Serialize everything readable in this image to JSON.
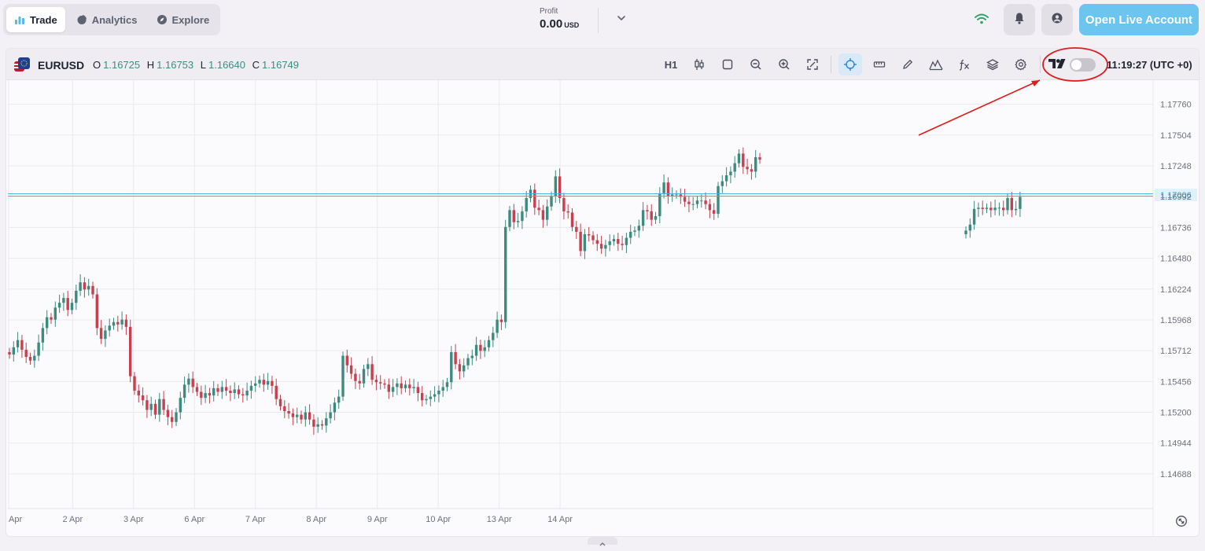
{
  "nav": {
    "tabs": [
      {
        "label": "Trade",
        "icon": "bar-chart-icon",
        "active": true
      },
      {
        "label": "Analytics",
        "icon": "pie-chart-icon",
        "active": false
      },
      {
        "label": "Explore",
        "icon": "compass-icon",
        "active": false
      }
    ]
  },
  "profit": {
    "label": "Profit",
    "value": "0.00",
    "currency": "USD"
  },
  "header": {
    "cta_label": "Open Live Account",
    "icons": [
      "wifi-icon",
      "bell-icon",
      "user-icon"
    ]
  },
  "colors": {
    "accent": "#6cc5ee",
    "bull": "#3d8a7e",
    "bear": "#c7404f",
    "price_line": "#4fb3d9"
  },
  "chart_toolbar": {
    "symbol": "EURUSD",
    "ohlc": {
      "o_label": "O",
      "o": "1.16725",
      "h_label": "H",
      "h": "1.16753",
      "l_label": "L",
      "l": "1.16640",
      "c_label": "C",
      "c": "1.16749"
    },
    "timeframe": "H1",
    "tools": [
      "candles-icon",
      "square-icon",
      "zoom-out-icon",
      "zoom-in-icon",
      "fullscreen-icon",
      "crosshair-icon",
      "ruler-icon",
      "pencil-icon",
      "indicators-icon",
      "fx-icon",
      "layers-icon",
      "settings-icon"
    ],
    "clock": "11:19:27 (UTC +0)",
    "tradingview_toggle": false
  },
  "chart_data": {
    "type": "candlestick",
    "symbol": "EURUSD",
    "timeframe": "H1",
    "y_ticks": [
      "1.17760",
      "1.17504",
      "1.17248",
      "1.16992",
      "1.16736",
      "1.16480",
      "1.16224",
      "1.15968",
      "1.15712",
      "1.15456",
      "1.15200",
      "1.14944",
      "1.14688"
    ],
    "ylim": [
      1.144,
      1.1796
    ],
    "current_price_label": "1.17006",
    "current_price": 1.17006,
    "x_ticks": [
      "Apr",
      "2 Apr",
      "3 Apr",
      "6 Apr",
      "7 Apr",
      "8 Apr",
      "9 Apr",
      "10 Apr",
      "13 Apr",
      "14 Apr"
    ],
    "grid": true,
    "segments": [
      {
        "start": 1.157,
        "points": [
          1.1568,
          1.1574,
          1.158,
          1.1572,
          1.1566,
          1.1563,
          1.1567,
          1.1578,
          1.159,
          1.1599,
          1.1597,
          1.1607,
          1.1611,
          1.1615,
          1.1605,
          1.1611,
          1.1621,
          1.1628,
          1.1622,
          1.1625,
          1.1618,
          1.159,
          1.1581,
          1.1588,
          1.1592,
          1.1595,
          1.1593,
          1.1597,
          1.1591,
          1.155,
          1.1538,
          1.1534,
          1.153,
          1.1522,
          1.1527,
          1.1518,
          1.1531,
          1.1522,
          1.1516,
          1.1512,
          1.152,
          1.1532,
          1.1543,
          1.1548,
          1.1541,
          1.1537,
          1.1532,
          1.1536,
          1.1534,
          1.154,
          1.1537,
          1.1541,
          1.1538,
          1.1536,
          1.1539,
          1.1535,
          1.1534,
          1.1538,
          1.1542,
          1.1544,
          1.1547,
          1.1543,
          1.1546,
          1.1542,
          1.1531,
          1.1525,
          1.1521,
          1.1519,
          1.1516,
          1.1518,
          1.1514,
          1.152,
          1.1514,
          1.1508,
          1.151,
          1.1509,
          1.1515,
          1.152,
          1.1528,
          1.1533,
          1.1567,
          1.1559,
          1.1552,
          1.1546,
          1.1544,
          1.1556,
          1.156,
          1.1547,
          1.1545,
          1.1544,
          1.1543,
          1.1537,
          1.1541,
          1.1544,
          1.154,
          1.1543,
          1.154,
          1.1541,
          1.1536,
          1.153,
          1.1531,
          1.1533,
          1.1535,
          1.1538,
          1.1541,
          1.1545,
          1.157,
          1.156,
          1.1554,
          1.1559,
          1.1565,
          1.1567,
          1.1576,
          1.1571,
          1.1574,
          1.158,
          1.1586,
          1.1597,
          1.1595,
          1.1674,
          1.1688,
          1.1678,
          1.1679,
          1.1687,
          1.1698,
          1.1705,
          1.169,
          1.1688,
          1.168,
          1.1691,
          1.17,
          1.1716,
          1.1698,
          1.1687,
          1.1686,
          1.1674,
          1.167,
          1.1654,
          1.1668,
          1.1667,
          1.1663,
          1.166,
          1.1656,
          1.1659,
          1.1662,
          1.1664,
          1.166,
          1.1659,
          1.1665,
          1.167,
          1.1671,
          1.1675,
          1.1688,
          1.1687,
          1.168,
          1.1683,
          1.1702,
          1.1711,
          1.17,
          1.1701,
          1.1701,
          1.1699,
          1.1695,
          1.1693,
          1.1693,
          1.1696,
          1.1696,
          1.1693,
          1.1688,
          1.1685,
          1.1708,
          1.1712,
          1.1717,
          1.172,
          1.1727,
          1.1735,
          1.1724,
          1.1722,
          1.172,
          1.1732,
          1.173
        ]
      },
      {
        "start": 1.1668,
        "points": [
          1.1671,
          1.1676,
          1.1689,
          1.169,
          1.1689,
          1.169,
          1.1688,
          1.169,
          1.169,
          1.1688,
          1.1698,
          1.1688,
          1.1689,
          1.1699
        ]
      }
    ]
  }
}
